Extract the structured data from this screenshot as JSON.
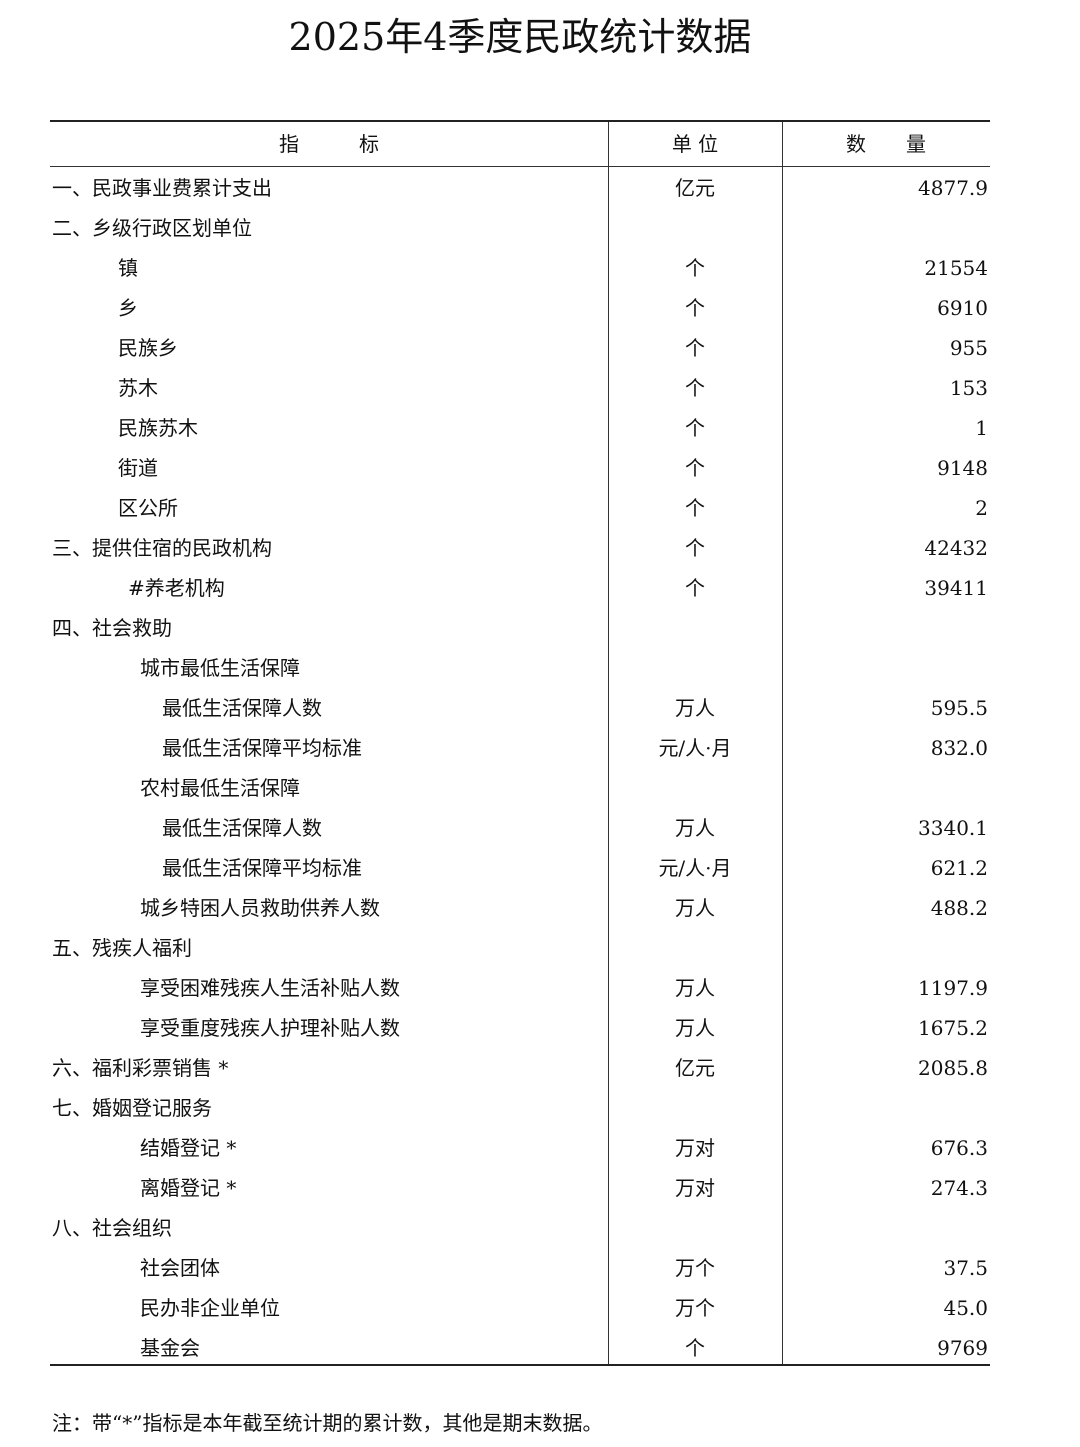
{
  "title": "2025年4季度民政统计数据",
  "headers": {
    "indicator": "指　　　标",
    "unit": "单 位",
    "quantity": "数　　量"
  },
  "rows": [
    {
      "label": "一、民政事业费累计支出",
      "level": 0,
      "unit": "亿元",
      "value": "4877.9"
    },
    {
      "label": "二、乡级行政区划单位",
      "level": 0,
      "unit": "",
      "value": ""
    },
    {
      "label": "镇",
      "level": 1,
      "unit": "个",
      "value": "21554"
    },
    {
      "label": "乡",
      "level": 1,
      "unit": "个",
      "value": "6910"
    },
    {
      "label": "民族乡",
      "level": 1,
      "unit": "个",
      "value": "955"
    },
    {
      "label": "苏木",
      "level": 1,
      "unit": "个",
      "value": "153"
    },
    {
      "label": "民族苏木",
      "level": 1,
      "unit": "个",
      "value": "1"
    },
    {
      "label": "街道",
      "level": 1,
      "unit": "个",
      "value": "9148"
    },
    {
      "label": "区公所",
      "level": 1,
      "unit": "个",
      "value": "2"
    },
    {
      "label": "三、提供住宿的民政机构",
      "level": 0,
      "unit": "个",
      "value": "42432"
    },
    {
      "label": "#养老机构",
      "level": 5,
      "unit": "个",
      "value": "39411"
    },
    {
      "label": "四、社会救助",
      "level": 0,
      "unit": "",
      "value": ""
    },
    {
      "label": "城市最低生活保障",
      "level": 2,
      "unit": "",
      "value": ""
    },
    {
      "label": "最低生活保障人数",
      "level": 3,
      "unit": "万人",
      "value": "595.5"
    },
    {
      "label": "最低生活保障平均标准",
      "level": 3,
      "unit": "元/人·月",
      "value": "832.0"
    },
    {
      "label": "农村最低生活保障",
      "level": 2,
      "unit": "",
      "value": ""
    },
    {
      "label": "最低生活保障人数",
      "level": 3,
      "unit": "万人",
      "value": "3340.1"
    },
    {
      "label": "最低生活保障平均标准",
      "level": 3,
      "unit": "元/人·月",
      "value": "621.2"
    },
    {
      "label": "城乡特困人员救助供养人数",
      "level": 2,
      "unit": "万人",
      "value": "488.2"
    },
    {
      "label": "五、残疾人福利",
      "level": 0,
      "unit": "",
      "value": ""
    },
    {
      "label": "享受困难残疾人生活补贴人数",
      "level": 2,
      "unit": "万人",
      "value": "1197.9"
    },
    {
      "label": "享受重度残疾人护理补贴人数",
      "level": 2,
      "unit": "万人",
      "value": "1675.2"
    },
    {
      "label": "六、福利彩票销售 *",
      "level": 0,
      "unit": "亿元",
      "value": "2085.8"
    },
    {
      "label": "七、婚姻登记服务",
      "level": 0,
      "unit": "",
      "value": ""
    },
    {
      "label": "结婚登记 *",
      "level": 2,
      "unit": "万对",
      "value": "676.3"
    },
    {
      "label": "离婚登记 *",
      "level": 2,
      "unit": "万对",
      "value": "274.3"
    },
    {
      "label": "八、社会组织",
      "level": 0,
      "unit": "",
      "value": ""
    },
    {
      "label": "社会团体",
      "level": 2,
      "unit": "万个",
      "value": "37.5"
    },
    {
      "label": "民办非企业单位",
      "level": 2,
      "unit": "万个",
      "value": "45.0"
    },
    {
      "label": "基金会",
      "level": 2,
      "unit": "个",
      "value": "9769"
    }
  ],
  "note": "注：带“*”指标是本年截至统计期的累计数，其他是期末数据。"
}
